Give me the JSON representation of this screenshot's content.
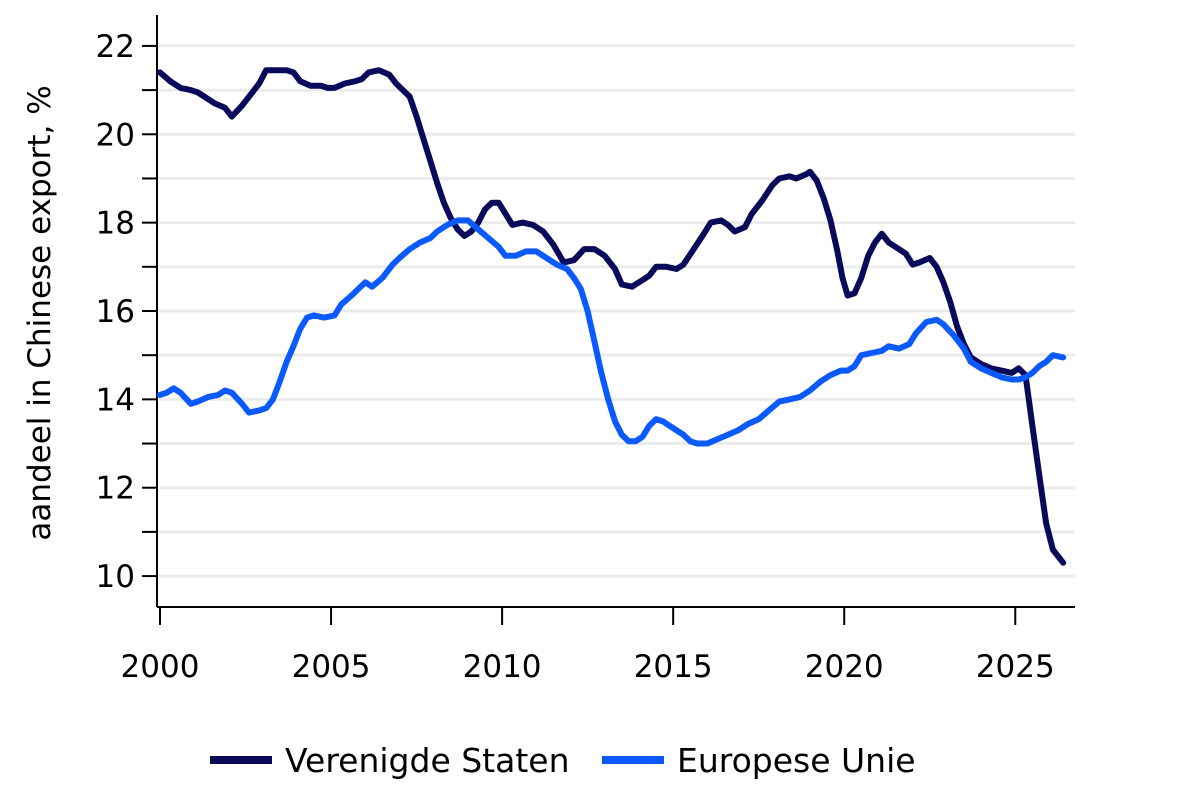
{
  "chart_data": {
    "type": "line",
    "title": "",
    "xlabel": "",
    "ylabel": "aandeel in Chinese export, %",
    "xlim": [
      2000,
      2026.6
    ],
    "ylim": [
      9.3,
      22.7
    ],
    "x_ticks": [
      2000,
      2005,
      2010,
      2015,
      2020,
      2025
    ],
    "x_tick_labels": [
      "2000",
      "2005",
      "2010",
      "2015",
      "2020",
      "2025"
    ],
    "y_ticks": [
      10,
      12,
      14,
      16,
      18,
      20,
      22
    ],
    "y_tick_labels": [
      "10",
      "12",
      "14",
      "16",
      "18",
      "20",
      "22"
    ],
    "y_minor_ticks": [
      11,
      13,
      15,
      17,
      19,
      21
    ],
    "grid": "horizontal",
    "legend_position": "bottom-center",
    "colors": {
      "grid": "#ebebeb",
      "axis": "#000000"
    },
    "series": [
      {
        "name": "Verenigde Staten",
        "color": "#0a0a5a",
        "points": [
          [
            2000.0,
            21.4
          ],
          [
            2000.3,
            21.2
          ],
          [
            2000.6,
            21.05
          ],
          [
            2000.9,
            21.0
          ],
          [
            2001.1,
            20.95
          ],
          [
            2001.3,
            20.85
          ],
          [
            2001.6,
            20.7
          ],
          [
            2001.9,
            20.6
          ],
          [
            2002.1,
            20.4
          ],
          [
            2002.4,
            20.65
          ],
          [
            2002.7,
            20.95
          ],
          [
            2002.9,
            21.15
          ],
          [
            2003.1,
            21.45
          ],
          [
            2003.4,
            21.45
          ],
          [
            2003.7,
            21.45
          ],
          [
            2003.9,
            21.4
          ],
          [
            2004.1,
            21.2
          ],
          [
            2004.4,
            21.1
          ],
          [
            2004.7,
            21.1
          ],
          [
            2004.9,
            21.05
          ],
          [
            2005.1,
            21.05
          ],
          [
            2005.4,
            21.15
          ],
          [
            2005.7,
            21.2
          ],
          [
            2005.9,
            21.25
          ],
          [
            2006.1,
            21.4
          ],
          [
            2006.4,
            21.45
          ],
          [
            2006.7,
            21.35
          ],
          [
            2006.9,
            21.15
          ],
          [
            2007.1,
            21.0
          ],
          [
            2007.3,
            20.85
          ],
          [
            2007.5,
            20.4
          ],
          [
            2007.7,
            19.9
          ],
          [
            2007.9,
            19.4
          ],
          [
            2008.1,
            18.9
          ],
          [
            2008.3,
            18.45
          ],
          [
            2008.5,
            18.1
          ],
          [
            2008.7,
            17.85
          ],
          [
            2008.9,
            17.7
          ],
          [
            2009.1,
            17.8
          ],
          [
            2009.3,
            18.0
          ],
          [
            2009.5,
            18.3
          ],
          [
            2009.7,
            18.45
          ],
          [
            2009.9,
            18.45
          ],
          [
            2010.1,
            18.2
          ],
          [
            2010.3,
            17.95
          ],
          [
            2010.6,
            18.0
          ],
          [
            2010.9,
            17.95
          ],
          [
            2011.2,
            17.8
          ],
          [
            2011.5,
            17.5
          ],
          [
            2011.8,
            17.1
          ],
          [
            2012.1,
            17.15
          ],
          [
            2012.4,
            17.4
          ],
          [
            2012.7,
            17.4
          ],
          [
            2013.0,
            17.25
          ],
          [
            2013.3,
            16.95
          ],
          [
            2013.5,
            16.6
          ],
          [
            2013.8,
            16.55
          ],
          [
            2014.1,
            16.7
          ],
          [
            2014.3,
            16.8
          ],
          [
            2014.5,
            17.0
          ],
          [
            2014.8,
            17.0
          ],
          [
            2015.1,
            16.95
          ],
          [
            2015.3,
            17.05
          ],
          [
            2015.6,
            17.4
          ],
          [
            2015.9,
            17.75
          ],
          [
            2016.1,
            18.0
          ],
          [
            2016.4,
            18.05
          ],
          [
            2016.6,
            17.95
          ],
          [
            2016.8,
            17.8
          ],
          [
            2017.1,
            17.9
          ],
          [
            2017.3,
            18.2
          ],
          [
            2017.6,
            18.5
          ],
          [
            2017.9,
            18.85
          ],
          [
            2018.1,
            19.0
          ],
          [
            2018.4,
            19.05
          ],
          [
            2018.6,
            19.0
          ],
          [
            2018.9,
            19.1
          ],
          [
            2019.0,
            19.15
          ],
          [
            2019.2,
            18.95
          ],
          [
            2019.4,
            18.55
          ],
          [
            2019.6,
            18.05
          ],
          [
            2019.8,
            17.35
          ],
          [
            2019.95,
            16.75
          ],
          [
            2020.1,
            16.35
          ],
          [
            2020.3,
            16.4
          ],
          [
            2020.5,
            16.75
          ],
          [
            2020.7,
            17.25
          ],
          [
            2020.9,
            17.55
          ],
          [
            2021.1,
            17.75
          ],
          [
            2021.3,
            17.55
          ],
          [
            2021.6,
            17.4
          ],
          [
            2021.8,
            17.3
          ],
          [
            2022.0,
            17.05
          ],
          [
            2022.2,
            17.1
          ],
          [
            2022.5,
            17.2
          ],
          [
            2022.7,
            17.0
          ],
          [
            2022.9,
            16.65
          ],
          [
            2023.1,
            16.2
          ],
          [
            2023.3,
            15.65
          ],
          [
            2023.5,
            15.25
          ],
          [
            2023.7,
            14.95
          ],
          [
            2024.0,
            14.8
          ],
          [
            2024.3,
            14.7
          ],
          [
            2024.6,
            14.65
          ],
          [
            2024.9,
            14.6
          ],
          [
            2025.1,
            14.7
          ],
          [
            2025.3,
            14.55
          ],
          [
            2025.5,
            13.4
          ],
          [
            2025.7,
            12.3
          ],
          [
            2025.9,
            11.2
          ],
          [
            2026.1,
            10.6
          ],
          [
            2026.4,
            10.3
          ]
        ]
      },
      {
        "name": "Europese Unie",
        "color": "#0a5aff",
        "points": [
          [
            2000.0,
            14.1
          ],
          [
            2000.2,
            14.15
          ],
          [
            2000.4,
            14.25
          ],
          [
            2000.6,
            14.15
          ],
          [
            2000.9,
            13.9
          ],
          [
            2001.1,
            13.95
          ],
          [
            2001.4,
            14.05
          ],
          [
            2001.7,
            14.1
          ],
          [
            2001.9,
            14.2
          ],
          [
            2002.1,
            14.15
          ],
          [
            2002.4,
            13.9
          ],
          [
            2002.6,
            13.7
          ],
          [
            2002.9,
            13.75
          ],
          [
            2003.1,
            13.8
          ],
          [
            2003.3,
            14.0
          ],
          [
            2003.5,
            14.4
          ],
          [
            2003.7,
            14.85
          ],
          [
            2003.9,
            15.2
          ],
          [
            2004.1,
            15.6
          ],
          [
            2004.3,
            15.85
          ],
          [
            2004.5,
            15.9
          ],
          [
            2004.8,
            15.85
          ],
          [
            2005.1,
            15.9
          ],
          [
            2005.3,
            16.15
          ],
          [
            2005.6,
            16.35
          ],
          [
            2005.8,
            16.5
          ],
          [
            2006.0,
            16.65
          ],
          [
            2006.2,
            16.55
          ],
          [
            2006.5,
            16.75
          ],
          [
            2006.8,
            17.05
          ],
          [
            2007.0,
            17.2
          ],
          [
            2007.3,
            17.4
          ],
          [
            2007.6,
            17.55
          ],
          [
            2007.9,
            17.65
          ],
          [
            2008.1,
            17.8
          ],
          [
            2008.4,
            17.95
          ],
          [
            2008.7,
            18.05
          ],
          [
            2009.0,
            18.05
          ],
          [
            2009.3,
            17.85
          ],
          [
            2009.6,
            17.65
          ],
          [
            2009.9,
            17.45
          ],
          [
            2010.1,
            17.25
          ],
          [
            2010.4,
            17.25
          ],
          [
            2010.7,
            17.35
          ],
          [
            2011.0,
            17.35
          ],
          [
            2011.3,
            17.2
          ],
          [
            2011.6,
            17.05
          ],
          [
            2011.9,
            16.95
          ],
          [
            2012.1,
            16.75
          ],
          [
            2012.3,
            16.5
          ],
          [
            2012.5,
            16.0
          ],
          [
            2012.7,
            15.3
          ],
          [
            2012.9,
            14.6
          ],
          [
            2013.1,
            14.0
          ],
          [
            2013.3,
            13.5
          ],
          [
            2013.5,
            13.2
          ],
          [
            2013.7,
            13.05
          ],
          [
            2013.9,
            13.05
          ],
          [
            2014.1,
            13.15
          ],
          [
            2014.3,
            13.4
          ],
          [
            2014.5,
            13.55
          ],
          [
            2014.7,
            13.5
          ],
          [
            2014.9,
            13.4
          ],
          [
            2015.1,
            13.3
          ],
          [
            2015.3,
            13.2
          ],
          [
            2015.5,
            13.05
          ],
          [
            2015.7,
            13.0
          ],
          [
            2016.0,
            13.0
          ],
          [
            2016.3,
            13.1
          ],
          [
            2016.6,
            13.2
          ],
          [
            2016.9,
            13.3
          ],
          [
            2017.2,
            13.45
          ],
          [
            2017.5,
            13.55
          ],
          [
            2017.8,
            13.75
          ],
          [
            2018.1,
            13.95
          ],
          [
            2018.4,
            14.0
          ],
          [
            2018.7,
            14.05
          ],
          [
            2019.0,
            14.2
          ],
          [
            2019.3,
            14.4
          ],
          [
            2019.6,
            14.55
          ],
          [
            2019.9,
            14.65
          ],
          [
            2020.1,
            14.65
          ],
          [
            2020.3,
            14.75
          ],
          [
            2020.5,
            15.0
          ],
          [
            2020.8,
            15.05
          ],
          [
            2021.1,
            15.1
          ],
          [
            2021.3,
            15.2
          ],
          [
            2021.6,
            15.15
          ],
          [
            2021.9,
            15.25
          ],
          [
            2022.1,
            15.5
          ],
          [
            2022.4,
            15.75
          ],
          [
            2022.7,
            15.8
          ],
          [
            2022.9,
            15.7
          ],
          [
            2023.2,
            15.45
          ],
          [
            2023.5,
            15.15
          ],
          [
            2023.7,
            14.85
          ],
          [
            2024.0,
            14.7
          ],
          [
            2024.3,
            14.6
          ],
          [
            2024.6,
            14.5
          ],
          [
            2024.9,
            14.45
          ],
          [
            2025.1,
            14.45
          ],
          [
            2025.3,
            14.5
          ],
          [
            2025.5,
            14.6
          ],
          [
            2025.7,
            14.75
          ],
          [
            2025.9,
            14.85
          ],
          [
            2026.1,
            15.0
          ],
          [
            2026.4,
            14.95
          ]
        ]
      }
    ]
  }
}
